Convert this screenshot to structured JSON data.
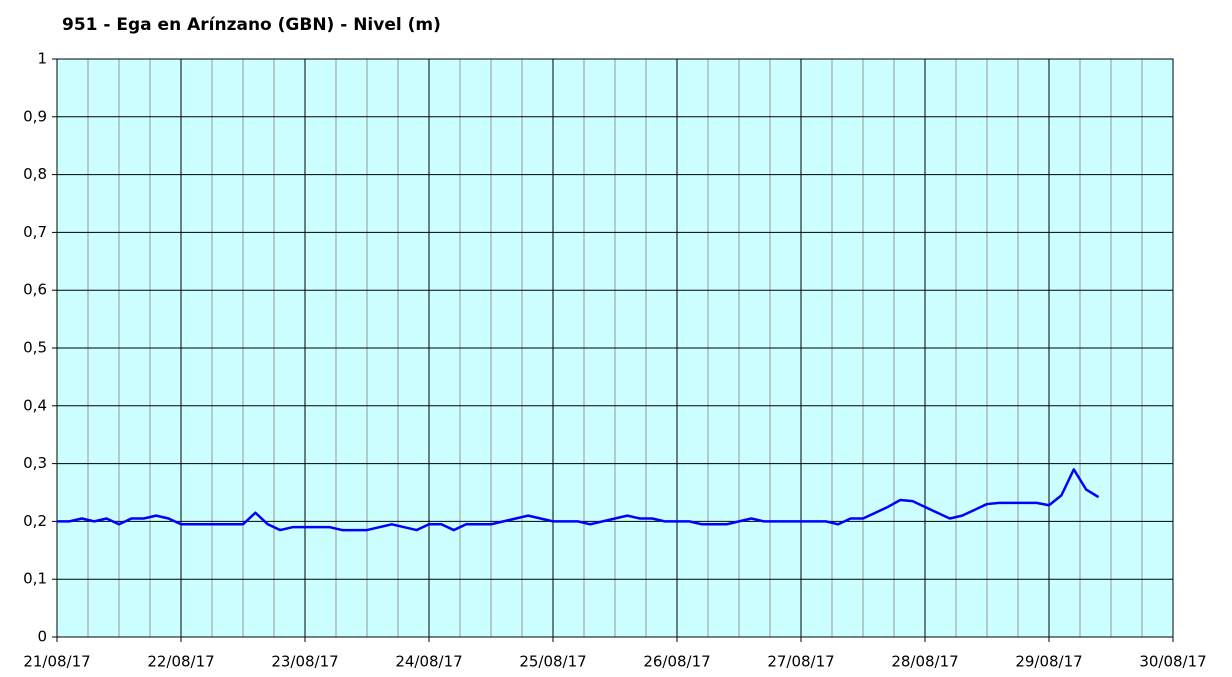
{
  "chart_data": {
    "type": "line",
    "title": "951 - Ega en Arínzano (GBN) - Nivel (m)",
    "xlim": [
      0,
      9
    ],
    "xticks": [
      {
        "value": 0,
        "label": "21/08/17"
      },
      {
        "value": 1,
        "label": "22/08/17"
      },
      {
        "value": 2,
        "label": "23/08/17"
      },
      {
        "value": 3,
        "label": "24/08/17"
      },
      {
        "value": 4,
        "label": "25/08/17"
      },
      {
        "value": 5,
        "label": "26/08/17"
      },
      {
        "value": 6,
        "label": "27/08/17"
      },
      {
        "value": 7,
        "label": "28/08/17"
      },
      {
        "value": 8,
        "label": "29/08/17"
      },
      {
        "value": 9,
        "label": "30/08/17"
      }
    ],
    "x_minor_step": 0.25,
    "ylim": [
      0,
      1
    ],
    "yticks": [
      0,
      {
        "value": 0.1,
        "label": "0,1"
      },
      {
        "value": 0.2,
        "label": "0,2"
      },
      {
        "value": 0.3,
        "label": "0,3"
      },
      {
        "value": 0.4,
        "label": "0,4"
      },
      {
        "value": 0.5,
        "label": "0,5"
      },
      {
        "value": 0.6,
        "label": "0,6"
      },
      {
        "value": 0.7,
        "label": "0,7"
      },
      {
        "value": 0.8,
        "label": "0,8"
      },
      {
        "value": 0.9,
        "label": "0,9"
      },
      1
    ],
    "grid": true,
    "background": "#ccffff",
    "series": [
      {
        "color": "#0000ff",
        "x": [
          0,
          0.1,
          0.2,
          0.3,
          0.4,
          0.5,
          0.6,
          0.7,
          0.8,
          0.9,
          1,
          1.1,
          1.2,
          1.3,
          1.4,
          1.5,
          1.6,
          1.7,
          1.8,
          1.9,
          2,
          2.1,
          2.2,
          2.3,
          2.4,
          2.5,
          2.6,
          2.7,
          2.8,
          2.9,
          3,
          3.1,
          3.2,
          3.3,
          3.4,
          3.5,
          3.6,
          3.7,
          3.8,
          3.9,
          4,
          4.1,
          4.2,
          4.3,
          4.4,
          4.5,
          4.6,
          4.7,
          4.8,
          4.9,
          5,
          5.1,
          5.2,
          5.3,
          5.4,
          5.5,
          5.6,
          5.7,
          5.8,
          5.9,
          6,
          6.1,
          6.2,
          6.3,
          6.4,
          6.5,
          6.6,
          6.7,
          6.8,
          6.9,
          7,
          7.1,
          7.2,
          7.3,
          7.4,
          7.5,
          7.6,
          7.7,
          7.8,
          7.9,
          8,
          8.1,
          8.2,
          8.3,
          8.4
        ],
        "values": [
          0.2,
          0.2,
          0.205,
          0.2,
          0.205,
          0.195,
          0.205,
          0.205,
          0.21,
          0.205,
          0.195,
          0.195,
          0.195,
          0.195,
          0.195,
          0.195,
          0.215,
          0.195,
          0.185,
          0.19,
          0.19,
          0.19,
          0.19,
          0.185,
          0.185,
          0.185,
          0.19,
          0.195,
          0.19,
          0.185,
          0.195,
          0.195,
          0.185,
          0.195,
          0.195,
          0.195,
          0.2,
          0.205,
          0.21,
          0.205,
          0.2,
          0.2,
          0.2,
          0.195,
          0.2,
          0.205,
          0.21,
          0.205,
          0.205,
          0.2,
          0.2,
          0.2,
          0.195,
          0.195,
          0.195,
          0.2,
          0.205,
          0.2,
          0.2,
          0.2,
          0.2,
          0.2,
          0.2,
          0.195,
          0.205,
          0.205,
          0.215,
          0.225,
          0.237,
          0.235,
          0.225,
          0.215,
          0.205,
          0.21,
          0.22,
          0.23,
          0.232,
          0.232,
          0.232,
          0.232,
          0.228,
          0.245,
          0.29,
          0.255,
          0.242
        ]
      }
    ]
  }
}
